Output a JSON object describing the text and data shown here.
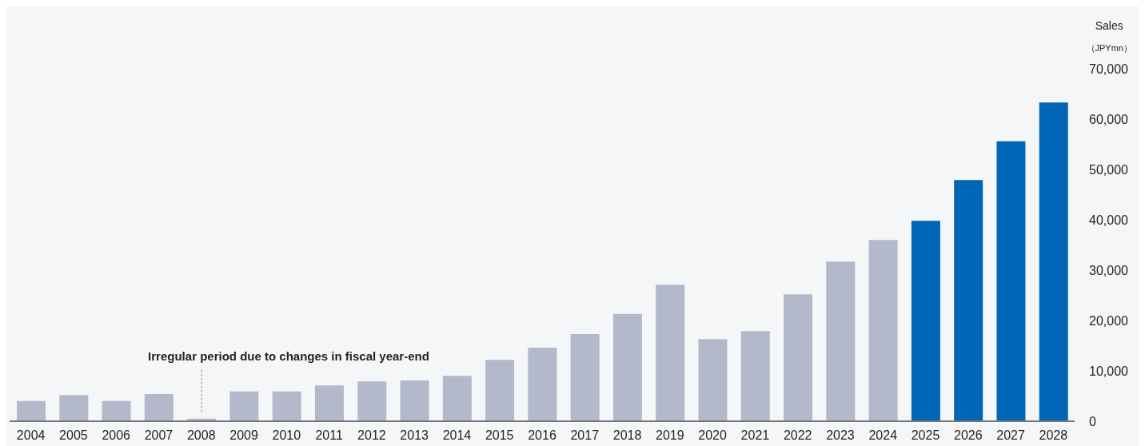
{
  "chart_data": {
    "type": "bar",
    "ylabel": "Sales\n（JPYmn）",
    "categories": [
      "2004",
      "2005",
      "2006",
      "2007",
      "2008",
      "2009",
      "2010",
      "2011",
      "2012",
      "2013",
      "2014",
      "2015",
      "2016",
      "2017",
      "2018",
      "2019",
      "2020",
      "2021",
      "2022",
      "2023",
      "2024",
      "2025",
      "2026",
      "2027",
      "2028"
    ],
    "values": [
      4000,
      5200,
      4000,
      5400,
      500,
      5900,
      5900,
      7100,
      7900,
      8100,
      9000,
      12200,
      14600,
      17300,
      21300,
      27100,
      16300,
      17900,
      25200,
      31700,
      36000,
      39800,
      47900,
      55600,
      63300
    ],
    "colors": [
      "#b3b8cb",
      "#b3b8cb",
      "#b3b8cb",
      "#b3b8cb",
      "#b3b8cb",
      "#b3b8cb",
      "#b3b8cb",
      "#b3b8cb",
      "#b3b8cb",
      "#b3b8cb",
      "#b3b8cb",
      "#b3b8cb",
      "#b3b8cb",
      "#b3b8cb",
      "#b3b8cb",
      "#b3b8cb",
      "#b3b8cb",
      "#b3b8cb",
      "#b3b8cb",
      "#b3b8cb",
      "#b3b8cb",
      "#0066b5",
      "#0066b5",
      "#0066b5",
      "#0066b5"
    ],
    "ylim": [
      0,
      70000
    ],
    "yticks": [
      0,
      {
        "value": 10000,
        "label": "10,000"
      },
      {
        "value": 20000,
        "label": "20,000"
      },
      {
        "value": 30000,
        "label": "30,000"
      },
      {
        "value": 40000,
        "label": "40,000"
      },
      {
        "value": 50000,
        "label": "50,000"
      },
      {
        "value": 60000,
        "label": "60,000"
      },
      {
        "value": 70000,
        "label": "70,000"
      }
    ],
    "grid": false,
    "annotations": [
      {
        "text": "Irregular period due to changes in fiscal year-end",
        "x": "2008",
        "y": 500
      }
    ]
  }
}
